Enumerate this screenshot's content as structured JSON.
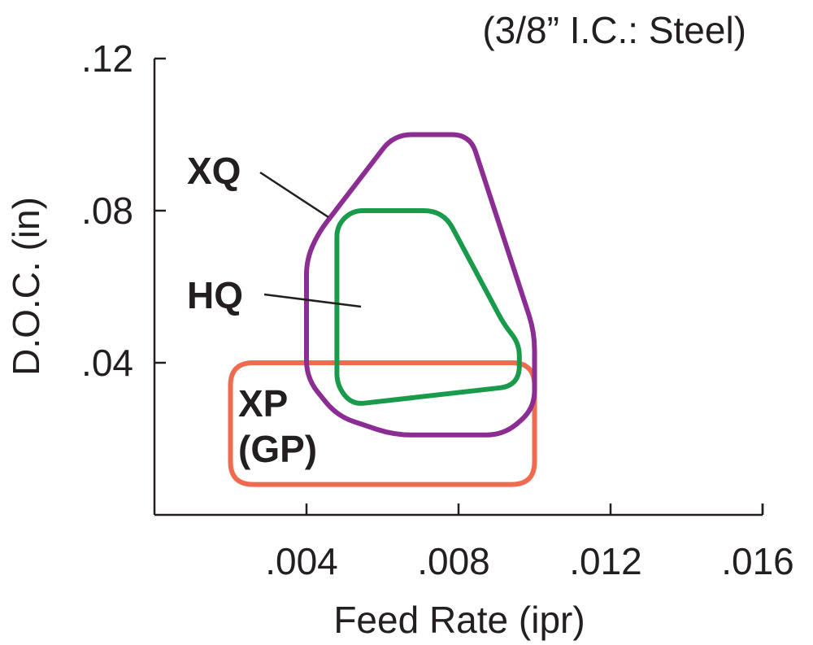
{
  "chart_data": {
    "type": "area",
    "title": "",
    "subtitle": "(3/8” I.C.: Steel)",
    "xlabel": "Feed Rate (ipr)",
    "ylabel": "D.O.C. (in)",
    "xlim": [
      0.0,
      0.016
    ],
    "ylim": [
      0.0,
      0.12
    ],
    "x_ticks": [
      {
        "value": 0.004,
        "label": ".004"
      },
      {
        "value": 0.008,
        "label": ".008"
      },
      {
        "value": 0.012,
        "label": ".012"
      },
      {
        "value": 0.016,
        "label": ".016"
      }
    ],
    "y_ticks": [
      {
        "value": 0.04,
        "label": ".04"
      },
      {
        "value": 0.08,
        "label": ".08"
      },
      {
        "value": 0.12,
        "label": ".12"
      }
    ],
    "grid": false,
    "series": [
      {
        "name": "XP",
        "label_line2": "(GP)",
        "color": "#ef6b4f",
        "x": [
          0.002,
          0.01,
          0.01,
          0.002
        ],
        "y": [
          0.008,
          0.008,
          0.04,
          0.04
        ]
      },
      {
        "name": "XQ",
        "color": "#8b2d93",
        "x": [
          0.004,
          0.004,
          0.0043,
          0.0063,
          0.0083,
          0.01,
          0.01,
          0.0092,
          0.0063,
          0.0048
        ],
        "y": [
          0.036,
          0.067,
          0.074,
          0.1,
          0.1,
          0.048,
          0.028,
          0.021,
          0.021,
          0.026
        ]
      },
      {
        "name": "HQ",
        "color": "#1a9b4c",
        "x": [
          0.0048,
          0.0048,
          0.0052,
          0.0076,
          0.0092,
          0.0096,
          0.0096,
          0.0052
        ],
        "y": [
          0.034,
          0.076,
          0.08,
          0.08,
          0.05,
          0.045,
          0.034,
          0.029
        ]
      }
    ]
  }
}
